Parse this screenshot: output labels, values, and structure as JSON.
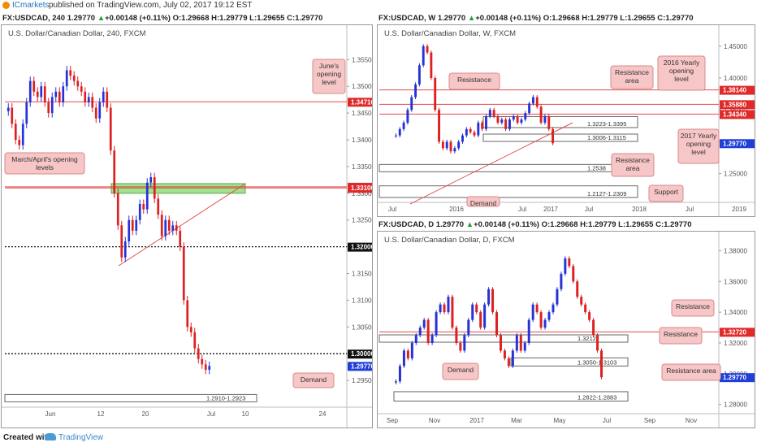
{
  "header": {
    "username": "ICmarkets",
    "published": "published on TradingView.com, July 02, 2017 19:12 EST"
  },
  "footer": {
    "created_with": "Created with",
    "brand": "TradingView"
  },
  "colors": {
    "up_candle": "#2432d6",
    "down_candle": "#dd2020",
    "resistance_line": "#e24a4a",
    "label_fill": "#f7c6c6",
    "zone_fill": "#8ee07a",
    "price_tag": "#e02a2a",
    "current_price_tag": "#1f3fd6"
  },
  "panes": [
    {
      "id": "h4",
      "header": {
        "symbol": "FX:USDCAD, 240",
        "last": "1.29770",
        "change": "+0.00148 (+0.11%)",
        "o": "O:1.29668",
        "h": "H:1.29779",
        "l": "L:1.29655",
        "c": "C:1.29770"
      },
      "chart_data": {
        "type": "candlestick",
        "title": "U.S. Dollar/Canadian Dollar, 240, FXCM",
        "price_scale": [
          "1.35500",
          "1.35000",
          "1.34500",
          "1.34000",
          "1.33500",
          "1.33000",
          "1.32500",
          "1.32000",
          "1.31500",
          "1.31000",
          "1.30500",
          "1.30000",
          "1.29500"
        ],
        "x_ticks": [
          "Jun",
          "12",
          "20",
          "Jul",
          "10",
          "24"
        ],
        "ylim": [
          1.29,
          1.359
        ],
        "series_close": [
          1.346,
          1.343,
          1.34,
          1.339,
          1.343,
          1.347,
          1.351,
          1.349,
          1.348,
          1.35,
          1.347,
          1.345,
          1.348,
          1.349,
          1.347,
          1.35,
          1.353,
          1.352,
          1.351,
          1.35,
          1.349,
          1.347,
          1.348,
          1.346,
          1.344,
          1.347,
          1.349,
          1.346,
          1.338,
          1.33,
          1.324,
          1.318,
          1.321,
          1.325,
          1.323,
          1.325,
          1.328,
          1.327,
          1.332,
          1.333,
          1.329,
          1.326,
          1.322,
          1.325,
          1.323,
          1.324,
          1.323,
          1.32,
          1.31,
          1.305,
          1.304,
          1.301,
          1.299,
          1.298,
          1.297,
          1.2977
        ],
        "levels": [
          {
            "label": "1.34710",
            "value": 1.3471,
            "style": "red"
          },
          {
            "label": "1.33120",
            "value": 1.3312,
            "style": "red"
          },
          {
            "label": "1.33100",
            "value": 1.331,
            "style": "red"
          },
          {
            "label": "1.32000",
            "value": 1.32,
            "style": "dotted"
          },
          {
            "label": "1.30000",
            "value": 1.3,
            "style": "dotted"
          },
          {
            "label": "1.29770",
            "value": 1.2977,
            "style": "current"
          }
        ],
        "zones": [
          {
            "label": "1.2910-1.2923",
            "low": 1.291,
            "high": 1.2923,
            "style": "box"
          },
          {
            "label": "",
            "low": 1.33,
            "high": 1.3315,
            "style": "green"
          }
        ],
        "annotations": [
          "June's opening level",
          "March/April's opening levels",
          "Demand"
        ]
      }
    },
    {
      "id": "w",
      "header": {
        "symbol": "FX:USDCAD, W",
        "last": "1.29770",
        "change": "+0.00148 (+0.11%)",
        "o": "O:1.29668",
        "h": "H:1.29779",
        "l": "L:1.29655",
        "c": "C:1.29770"
      },
      "chart_data": {
        "type": "candlestick",
        "title": "U.S. Dollar/Canadian Dollar, W, FXCM",
        "price_scale": [
          "1.45000",
          "1.40000",
          "1.35000",
          "1.30000",
          "1.25000"
        ],
        "x_ticks": [
          "Jul",
          "2016",
          "Jul",
          "2017",
          "Jul",
          "2018",
          "Jul",
          "2019"
        ],
        "ylim": [
          1.205,
          1.465
        ],
        "series_close": [
          1.31,
          1.32,
          1.33,
          1.35,
          1.37,
          1.39,
          1.42,
          1.45,
          1.44,
          1.4,
          1.35,
          1.3,
          1.29,
          1.3,
          1.285,
          1.29,
          1.3,
          1.31,
          1.32,
          1.315,
          1.31,
          1.33,
          1.32,
          1.34,
          1.35,
          1.34,
          1.33,
          1.335,
          1.32,
          1.335,
          1.34,
          1.33,
          1.335,
          1.345,
          1.36,
          1.37,
          1.355,
          1.33,
          1.34,
          1.32,
          1.2977
        ],
        "levels": [
          {
            "label": "1.38140",
            "value": 1.3814,
            "style": "red"
          },
          {
            "label": "1.35880",
            "value": 1.3588,
            "style": "red"
          },
          {
            "label": "1.34340",
            "value": 1.3434,
            "style": "red"
          },
          {
            "label": "1.29770",
            "value": 1.2977,
            "style": "current"
          }
        ],
        "zones": [
          {
            "label": "1.3223-1.3395",
            "low": 1.3223,
            "high": 1.3395,
            "style": "box"
          },
          {
            "label": "1.3006-1.3115",
            "low": 1.3006,
            "high": 1.3115,
            "style": "box"
          },
          {
            "label": "1.2538",
            "low": 1.253,
            "high": 1.2545,
            "style": "box"
          },
          {
            "label": "1.2127-1.2309",
            "low": 1.2127,
            "high": 1.2309,
            "style": "box"
          }
        ],
        "annotations": [
          "Resistance",
          "Resistance area",
          "2016 Yearly opening level",
          "2017 Yearly opening level",
          "Resistance area",
          "Support",
          "Demand"
        ]
      }
    },
    {
      "id": "d",
      "header": {
        "symbol": "FX:USDCAD, D",
        "last": "1.29770",
        "change": "+0.00148 (+0.11%)",
        "o": "O:1.29668",
        "h": "H:1.29779",
        "l": "L:1.29655",
        "c": "C:1.29770"
      },
      "chart_data": {
        "type": "candlestick",
        "title": "U.S. Dollar/Canadian Dollar, D, FXCM",
        "price_scale": [
          "1.38000",
          "1.36000",
          "1.34000",
          "1.32000",
          "1.30000",
          "1.28000"
        ],
        "x_ticks": [
          "Sep",
          "Nov",
          "2017",
          "Mar",
          "May",
          "Jul",
          "Sep",
          "Nov"
        ],
        "ylim": [
          1.274,
          1.385
        ],
        "series_close": [
          1.295,
          1.305,
          1.315,
          1.31,
          1.32,
          1.325,
          1.33,
          1.335,
          1.32,
          1.325,
          1.34,
          1.345,
          1.34,
          1.35,
          1.33,
          1.32,
          1.315,
          1.325,
          1.335,
          1.345,
          1.34,
          1.33,
          1.345,
          1.355,
          1.34,
          1.325,
          1.315,
          1.31,
          1.305,
          1.315,
          1.325,
          1.315,
          1.32,
          1.335,
          1.345,
          1.34,
          1.33,
          1.335,
          1.34,
          1.345,
          1.355,
          1.365,
          1.375,
          1.37,
          1.36,
          1.35,
          1.345,
          1.34,
          1.335,
          1.325,
          1.315,
          1.2977
        ],
        "levels": [
          {
            "label": "1.32720",
            "value": 1.3272,
            "style": "red"
          },
          {
            "label": "1.29770",
            "value": 1.2977,
            "style": "current"
          }
        ],
        "zones": [
          {
            "label": "1.3212",
            "low": 1.3205,
            "high": 1.3218,
            "style": "box"
          },
          {
            "label": "1.3050-1.3103",
            "low": 1.305,
            "high": 1.3103,
            "style": "box"
          },
          {
            "label": "1.2822-1.2883",
            "low": 1.2822,
            "high": 1.2883,
            "style": "box"
          }
        ],
        "annotations": [
          "Resistance",
          "Resistance",
          "Resistance area",
          "Demand"
        ]
      }
    }
  ]
}
